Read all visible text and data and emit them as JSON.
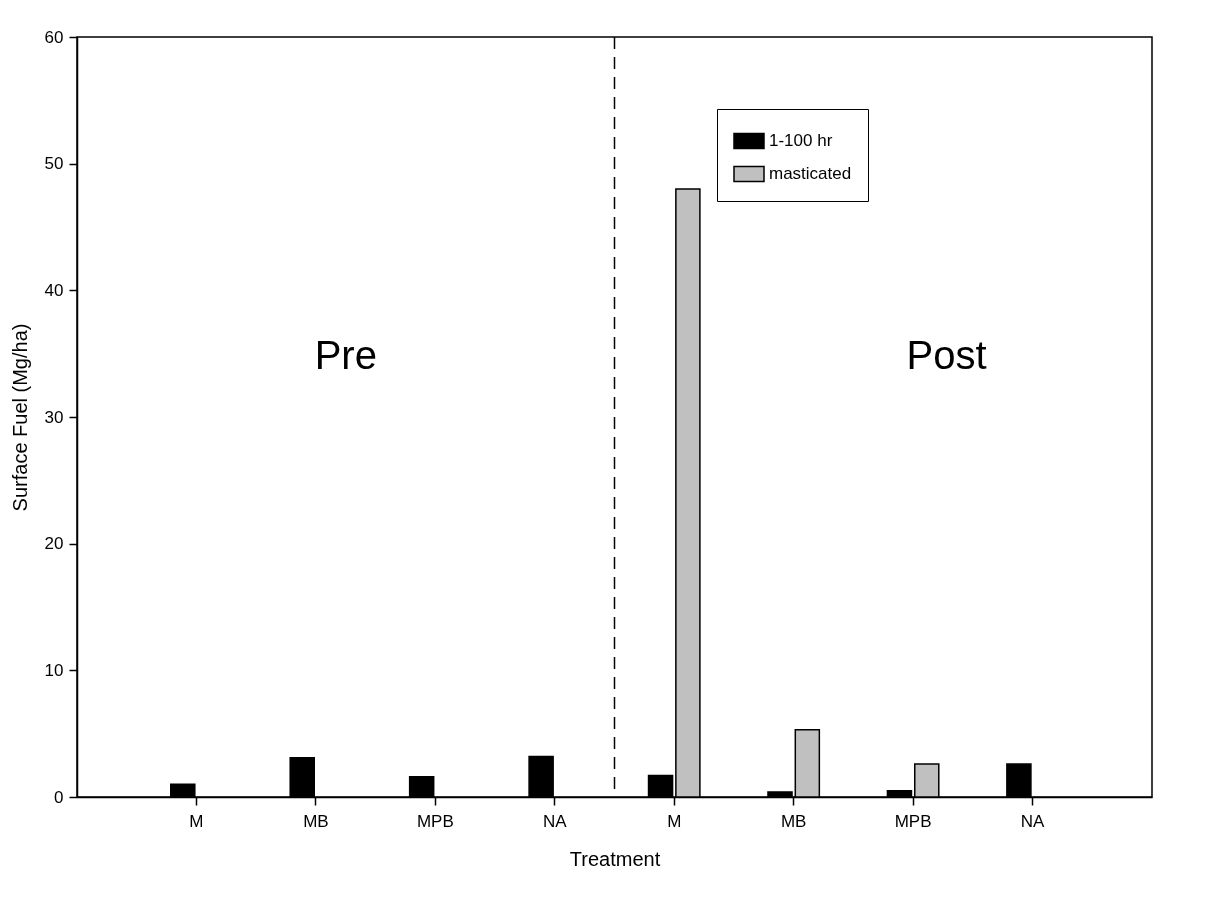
{
  "chart_data": {
    "type": "bar",
    "xlabel": "Treatment",
    "ylabel": "Surface Fuel (Mg/ha)",
    "categories": [
      "M",
      "MB",
      "MPB",
      "NA",
      "M",
      "MB",
      "MPB",
      "NA"
    ],
    "series": [
      {
        "name": "1-100 hr",
        "color": "#000000",
        "values": [
          1.0,
          3.1,
          1.6,
          3.2,
          1.7,
          0.4,
          0.5,
          2.6
        ]
      },
      {
        "name": "masticated",
        "color": "#c0c0c0",
        "values": [
          null,
          null,
          null,
          null,
          48,
          5.3,
          2.6,
          null
        ]
      }
    ],
    "ylim": [
      0,
      60
    ],
    "yticks": [
      0,
      10,
      20,
      30,
      40,
      50,
      60
    ],
    "grid": false,
    "legend": "top right",
    "annotations": [
      "Pre",
      "Post"
    ]
  }
}
